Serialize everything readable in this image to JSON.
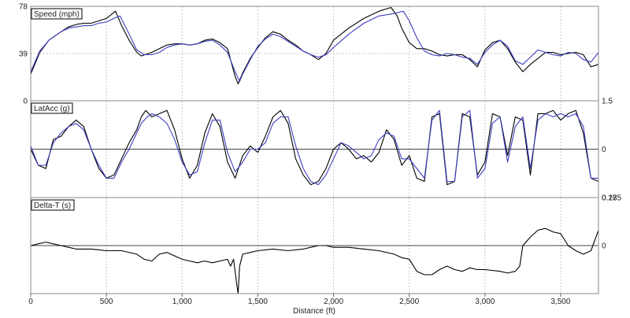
{
  "chart_data": {
    "type": "line",
    "x_axis": {
      "label": "Distance (ft)",
      "range": [
        0,
        3750
      ],
      "ticks": [
        0,
        500,
        1000,
        1500,
        2000,
        2500,
        3000,
        3500
      ],
      "tick_labels": [
        "0",
        "500",
        "1,000",
        "1,500",
        "2,000",
        "2,500",
        "3,000",
        "3,500"
      ]
    },
    "colors": {
      "primary": "#000000",
      "secondary": "#3d3dc2",
      "grid": "#c8c8c8",
      "border": "#888888"
    },
    "panels": [
      {
        "title": "Speed (mph)",
        "y_range": [
          0,
          78
        ],
        "left_ticks": [
          78,
          39,
          0
        ],
        "left_tick_labels": [
          "78",
          "39",
          "0"
        ],
        "right_ticks": [],
        "right_tick_labels": [],
        "hgrid": [
          39
        ],
        "series": [
          {
            "x": [
              0,
              60,
              120,
              200,
              250,
              300,
              350,
              400,
              450,
              500,
              530,
              560,
              600,
              650,
              700,
              730,
              800,
              850,
              900,
              950,
              1000,
              1050,
              1100,
              1150,
              1200,
              1250,
              1300,
              1350,
              1370,
              1400,
              1450,
              1500,
              1550,
              1600,
              1650,
              1700,
              1750,
              1800,
              1850,
              1900,
              1950,
              2000,
              2100,
              2200,
              2300,
              2380,
              2420,
              2450,
              2500,
              2550,
              2600,
              2650,
              2700,
              2750,
              2800,
              2850,
              2900,
              2950,
              3000,
              3050,
              3100,
              3150,
              3200,
              3250,
              3300,
              3350,
              3400,
              3450,
              3500,
              3550,
              3600,
              3650,
              3700,
              3750
            ],
            "y": [
              22,
              40,
              50,
              57,
              61,
              63,
              64,
              64,
              66,
              68,
              71,
              74,
              62,
              50,
              40,
              37,
              40,
              43,
              46,
              47,
              47,
              46,
              47,
              50,
              51,
              48,
              43,
              20,
              14,
              23,
              35,
              44,
              52,
              57,
              55,
              50,
              46,
              41,
              38,
              34,
              39,
              50,
              60,
              68,
              74,
              77,
              70,
              60,
              48,
              43,
              43,
              41,
              38,
              37,
              38,
              38,
              34,
              28,
              42,
              48,
              50,
              43,
              32,
              24,
              30,
              35,
              40,
              40,
              38,
              39,
              40,
              38,
              28,
              30
            ]
          },
          {
            "x": [
              0,
              60,
              120,
              200,
              250,
              300,
              350,
              400,
              450,
              500,
              550,
              590,
              650,
              700,
              750,
              800,
              850,
              900,
              950,
              1000,
              1050,
              1100,
              1150,
              1200,
              1250,
              1300,
              1350,
              1380,
              1400,
              1450,
              1500,
              1550,
              1600,
              1650,
              1700,
              1750,
              1800,
              1850,
              1900,
              1950,
              2000,
              2100,
              2200,
              2300,
              2400,
              2460,
              2500,
              2550,
              2600,
              2650,
              2700,
              2750,
              2800,
              2850,
              2900,
              2950,
              3000,
              3050,
              3100,
              3150,
              3200,
              3250,
              3300,
              3350,
              3400,
              3450,
              3500,
              3550,
              3600,
              3650,
              3700,
              3750
            ],
            "y": [
              24,
              41,
              50,
              57,
              60,
              61,
              62,
              62,
              64,
              65,
              68,
              70,
              55,
              42,
              38,
              38,
              40,
              44,
              46,
              47,
              46,
              47,
              49,
              50,
              46,
              40,
              24,
              16,
              22,
              34,
              45,
              51,
              55,
              53,
              49,
              45,
              41,
              38,
              36,
              38,
              44,
              55,
              64,
              70,
              72,
              74,
              66,
              52,
              41,
              38,
              37,
              39,
              38,
              36,
              35,
              30,
              40,
              46,
              50,
              45,
              33,
              30,
              36,
              42,
              40,
              38,
              37,
              40,
              39,
              34,
              32,
              40
            ]
          }
        ]
      },
      {
        "title": "LatAcc (g)",
        "y_range": [
          -1.5,
          1.5
        ],
        "left_ticks": [],
        "left_tick_labels": [],
        "right_ticks": [
          1.5,
          0
        ],
        "right_tick_labels": [
          "1.5",
          "0"
        ],
        "hgrid": [
          0
        ],
        "series": [
          {
            "x": [
              0,
              50,
              100,
              150,
              200,
              250,
              300,
              350,
              400,
              450,
              500,
              550,
              600,
              650,
              700,
              730,
              760,
              800,
              850,
              900,
              950,
              1000,
              1050,
              1100,
              1150,
              1200,
              1250,
              1300,
              1350,
              1400,
              1450,
              1500,
              1550,
              1600,
              1650,
              1700,
              1750,
              1800,
              1850,
              1900,
              1950,
              2000,
              2050,
              2100,
              2150,
              2200,
              2250,
              2300,
              2350,
              2400,
              2450,
              2500,
              2550,
              2600,
              2650,
              2700,
              2750,
              2800,
              2850,
              2900,
              2950,
              3000,
              3050,
              3100,
              3150,
              3200,
              3250,
              3300,
              3350,
              3400,
              3450,
              3500,
              3550,
              3600,
              3650,
              3700,
              3750
            ],
            "y": [
              0,
              -0.5,
              -0.6,
              0.3,
              0.4,
              0.7,
              0.9,
              0.7,
              0.0,
              -0.6,
              -0.9,
              -0.8,
              -0.3,
              0.2,
              0.6,
              1.0,
              1.2,
              1.0,
              1.1,
              1.2,
              0.6,
              -0.3,
              -0.9,
              -0.5,
              0.5,
              1.1,
              0.7,
              -0.4,
              -0.9,
              -0.2,
              0.1,
              -0.1,
              0.4,
              1.0,
              1.2,
              0.8,
              -0.3,
              -0.8,
              -1.1,
              -1.0,
              -0.6,
              0.0,
              0.2,
              0.0,
              -0.3,
              -0.2,
              -0.4,
              -0.1,
              0.6,
              0.3,
              -0.5,
              -0.2,
              -0.9,
              -1.0,
              1.0,
              1.1,
              -1.1,
              -1.0,
              1.1,
              1.0,
              -0.8,
              -0.4,
              1.1,
              1.0,
              -0.2,
              1.0,
              0.9,
              -0.8,
              1.1,
              1.1,
              1.2,
              0.9,
              1.1,
              1.2,
              0.5,
              -0.9,
              -1.0
            ]
          },
          {
            "x": [
              0,
              50,
              100,
              150,
              200,
              250,
              300,
              350,
              400,
              450,
              500,
              550,
              600,
              650,
              700,
              730,
              770,
              800,
              850,
              900,
              950,
              1000,
              1050,
              1100,
              1150,
              1200,
              1250,
              1300,
              1350,
              1400,
              1450,
              1500,
              1550,
              1600,
              1650,
              1700,
              1750,
              1800,
              1850,
              1900,
              1950,
              2000,
              2050,
              2100,
              2150,
              2200,
              2250,
              2300,
              2350,
              2400,
              2450,
              2500,
              2550,
              2600,
              2650,
              2700,
              2750,
              2800,
              2850,
              2900,
              2950,
              3000,
              3050,
              3100,
              3150,
              3200,
              3250,
              3300,
              3350,
              3400,
              3450,
              3500,
              3550,
              3600,
              3650,
              3700,
              3750
            ],
            "y": [
              0.1,
              -0.5,
              -0.5,
              0.2,
              0.5,
              0.7,
              0.8,
              0.6,
              0.0,
              -0.5,
              -0.9,
              -0.9,
              -0.4,
              0.0,
              0.5,
              0.8,
              1.0,
              1.1,
              1.0,
              0.8,
              0.3,
              -0.4,
              -0.8,
              -0.7,
              0.2,
              0.9,
              0.9,
              -0.1,
              -0.7,
              -0.4,
              0.0,
              0.0,
              0.2,
              0.8,
              1.0,
              1.0,
              0.1,
              -0.6,
              -1.0,
              -1.1,
              -0.8,
              -0.3,
              0.2,
              0.1,
              -0.1,
              -0.3,
              -0.2,
              0.3,
              0.5,
              0.4,
              -0.3,
              -0.3,
              -0.6,
              -0.9,
              0.9,
              1.2,
              -1.0,
              -1.0,
              1.0,
              1.2,
              -0.9,
              -0.6,
              0.8,
              1.0,
              -0.4,
              0.7,
              1.0,
              -0.6,
              0.9,
              1.1,
              1.0,
              1.1,
              1.0,
              1.1,
              0.7,
              -0.9,
              -0.9
            ]
          }
        ]
      },
      {
        "title": "Delta-T (s)",
        "y_range": [
          -0.28,
          0.28
        ],
        "left_ticks": [],
        "left_tick_labels": [],
        "right_ticks": [
          0.28,
          0
        ],
        "right_tick_labels": [
          "0.28",
          "0"
        ],
        "overlap_label": "0.175",
        "hgrid": [
          0
        ],
        "series": [
          {
            "x": [
              0,
              50,
              100,
              150,
              200,
              250,
              300,
              400,
              500,
              600,
              700,
              750,
              800,
              850,
              900,
              950,
              1000,
              1050,
              1100,
              1150,
              1200,
              1250,
              1300,
              1320,
              1340,
              1360,
              1370,
              1380,
              1400,
              1450,
              1500,
              1600,
              1700,
              1800,
              1850,
              1900,
              1950,
              2000,
              2100,
              2200,
              2300,
              2400,
              2450,
              2500,
              2550,
              2600,
              2650,
              2700,
              2750,
              2800,
              2850,
              2900,
              2950,
              3000,
              3100,
              3150,
              3200,
              3230,
              3250,
              3300,
              3350,
              3400,
              3450,
              3500,
              3550,
              3600,
              3650,
              3700,
              3750
            ],
            "y": [
              0.0,
              0.01,
              0.02,
              0.01,
              0.0,
              -0.01,
              -0.02,
              -0.02,
              -0.03,
              -0.03,
              -0.05,
              -0.08,
              -0.09,
              -0.05,
              -0.04,
              -0.06,
              -0.08,
              -0.09,
              -0.1,
              -0.09,
              -0.1,
              -0.09,
              -0.08,
              -0.12,
              -0.08,
              -0.22,
              -0.28,
              -0.12,
              -0.05,
              -0.04,
              -0.03,
              -0.02,
              -0.03,
              -0.02,
              -0.01,
              0.0,
              0.0,
              -0.01,
              -0.01,
              -0.02,
              -0.03,
              -0.05,
              -0.07,
              -0.08,
              -0.15,
              -0.17,
              -0.17,
              -0.14,
              -0.12,
              -0.14,
              -0.15,
              -0.13,
              -0.14,
              -0.14,
              -0.15,
              -0.16,
              -0.15,
              -0.12,
              0.0,
              0.05,
              0.09,
              0.1,
              0.08,
              0.07,
              0.0,
              -0.03,
              -0.05,
              -0.03,
              0.09
            ]
          }
        ]
      }
    ]
  }
}
